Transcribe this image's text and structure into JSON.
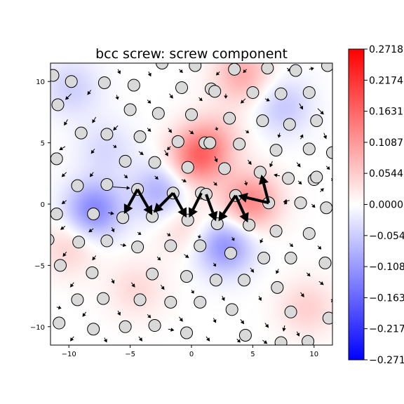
{
  "chart_data": {
    "type": "heatmap",
    "title": "bcc screw: screw component",
    "xlabel": "",
    "ylabel": "",
    "xlim": [
      -11.5,
      11.5
    ],
    "ylim": [
      -11.5,
      11.5
    ],
    "xticks": [
      -10,
      -5,
      0,
      5,
      10
    ],
    "yticks": [
      -10,
      -5,
      0,
      5,
      10
    ],
    "xtick_labels": [
      "−10",
      "−5",
      "0",
      "5",
      "10"
    ],
    "ytick_labels": [
      "−10",
      "−5",
      "0",
      "5",
      "10"
    ],
    "grid": false,
    "colormap": "bwr",
    "colors": {
      "positive": "#ff0000",
      "zero": "#ffffff",
      "negative": "#0000ff"
    },
    "colorbar": {
      "range": [
        -0.2718,
        0.2718
      ],
      "ticks": [
        0.2718,
        0.2174,
        0.1631,
        0.1087,
        0.0544,
        0.0,
        -0.0544,
        -0.1087,
        -0.1631,
        -0.2174,
        -0.2718
      ],
      "tick_labels": [
        "0.2718",
        "0.2174",
        "0.1631",
        "0.1087",
        "0.0544",
        "0.0000",
        "−0.0544",
        "−0.1087",
        "−0.1631",
        "−0.2174",
        "−0.2718"
      ]
    },
    "field_sources": [
      {
        "x": 0.5,
        "y": 3.8,
        "value": 0.15
      },
      {
        "x": 4.8,
        "y": 0.2,
        "value": 0.13
      },
      {
        "x": 2.0,
        "y": 5.5,
        "value": 0.05
      },
      {
        "x": -8.0,
        "y": -0.5,
        "value": -0.13
      },
      {
        "x": -2.5,
        "y": 1.0,
        "value": -0.09
      },
      {
        "x": 2.7,
        "y": -3.4,
        "value": -0.12
      },
      {
        "x": 4.2,
        "y": 10.6,
        "value": 0.09
      },
      {
        "x": -0.5,
        "y": -1.8,
        "value": 0.05
      },
      {
        "x": 7.5,
        "y": 8.0,
        "value": -0.06
      },
      {
        "x": -10.0,
        "y": -3.5,
        "value": 0.05
      },
      {
        "x": -9.8,
        "y": 9.5,
        "value": -0.05
      },
      {
        "x": 9.5,
        "y": -8.5,
        "value": 0.05
      },
      {
        "x": -7.0,
        "y": 4.5,
        "value": -0.04
      },
      {
        "x": -4.5,
        "y": -7.0,
        "value": 0.04
      }
    ],
    "atoms": [
      [
        -11.3,
        10.5
      ],
      [
        -9.8,
        10.0
      ],
      [
        -7.1,
        9.9
      ],
      [
        -4.7,
        9.7
      ],
      [
        -2.4,
        11.5
      ],
      [
        -0.8,
        9.5
      ],
      [
        0.3,
        11.3
      ],
      [
        1.6,
        9.4
      ],
      [
        3.5,
        11.0
      ],
      [
        5.0,
        9.1
      ],
      [
        6.2,
        11.1
      ],
      [
        8.5,
        10.9
      ],
      [
        7.3,
        9.0
      ],
      [
        9.6,
        9.1
      ],
      [
        11.1,
        11.3
      ],
      [
        -10.9,
        8.1
      ],
      [
        -5.0,
        7.7
      ],
      [
        -2.7,
        7.4
      ],
      [
        0.0,
        7.3
      ],
      [
        1.9,
        9.2
      ],
      [
        3.1,
        7.0
      ],
      [
        5.8,
        6.8
      ],
      [
        8.0,
        6.5
      ],
      [
        10.2,
        6.8
      ],
      [
        -9.0,
        5.8
      ],
      [
        -6.9,
        5.7
      ],
      [
        -4.2,
        5.5
      ],
      [
        -1.1,
        5.1
      ],
      [
        1.1,
        5.0
      ],
      [
        1.5,
        5.0
      ],
      [
        3.9,
        4.9
      ],
      [
        6.9,
        4.4
      ],
      [
        9.6,
        4.5
      ],
      [
        11.5,
        4.2
      ],
      [
        -11.0,
        3.7
      ],
      [
        -5.4,
        3.5
      ],
      [
        -3.0,
        3.4
      ],
      [
        -0.3,
        3.0
      ],
      [
        2.7,
        2.9
      ],
      [
        5.6,
        2.6
      ],
      [
        7.9,
        2.1
      ],
      [
        10.0,
        2.0
      ],
      [
        10.2,
        2.2
      ],
      [
        -9.3,
        1.5
      ],
      [
        -6.9,
        1.6
      ],
      [
        -4.4,
        1.2
      ],
      [
        -1.5,
        0.9
      ],
      [
        0.8,
        0.9
      ],
      [
        1.2,
        0.8
      ],
      [
        3.6,
        0.7
      ],
      [
        6.3,
        0.1
      ],
      [
        8.9,
        0.1
      ],
      [
        11.0,
        -0.3
      ],
      [
        -11.0,
        -0.8
      ],
      [
        -8.0,
        -0.8
      ],
      [
        -5.6,
        -1.1
      ],
      [
        -3.2,
        -1.0
      ],
      [
        -0.3,
        -1.3
      ],
      [
        2.1,
        -1.6
      ],
      [
        4.7,
        -1.7
      ],
      [
        6.9,
        -2.2
      ],
      [
        9.6,
        -2.4
      ],
      [
        -11.7,
        -2.9
      ],
      [
        -9.2,
        -3.1
      ],
      [
        -6.9,
        -3.0
      ],
      [
        -4.4,
        -3.5
      ],
      [
        -1.7,
        -3.4
      ],
      [
        0.7,
        -3.4
      ],
      [
        3.2,
        -4.0
      ],
      [
        5.9,
        -4.4
      ],
      [
        8.1,
        -4.4
      ],
      [
        10.9,
        -4.8
      ],
      [
        -10.7,
        -5.0
      ],
      [
        -8.1,
        -5.6
      ],
      [
        -3.2,
        -5.7
      ],
      [
        -0.4,
        -5.9
      ],
      [
        2.0,
        -6.2
      ],
      [
        4.3,
        -6.2
      ],
      [
        7.0,
        -6.8
      ],
      [
        -9.3,
        -7.8
      ],
      [
        -7.2,
        -7.7
      ],
      [
        -4.2,
        -7.8
      ],
      [
        -1.7,
        -8.0
      ],
      [
        0.7,
        -8.0
      ],
      [
        3.3,
        -8.6
      ],
      [
        8.1,
        -8.8
      ],
      [
        11.2,
        -9.3
      ],
      [
        -10.8,
        -9.7
      ],
      [
        -8.0,
        -10.2
      ],
      [
        -5.4,
        -10.0
      ],
      [
        -3.0,
        -9.9
      ],
      [
        -0.4,
        -10.5
      ],
      [
        4.4,
        -10.7
      ],
      [
        7.3,
        -11.3
      ],
      [
        9.5,
        -11.2
      ]
    ],
    "core_arrows": [
      [
        -4.4,
        1.2,
        -5.5,
        -0.8
      ],
      [
        -4.4,
        1.2,
        -3.2,
        -0.9
      ],
      [
        -1.5,
        0.9,
        -3.1,
        -0.7
      ],
      [
        -1.5,
        0.9,
        -0.4,
        -1.1
      ],
      [
        0.8,
        0.9,
        -0.2,
        -1.1
      ],
      [
        1.2,
        0.8,
        2.0,
        -1.4
      ],
      [
        3.6,
        0.7,
        2.2,
        -1.4
      ],
      [
        3.6,
        0.7,
        4.6,
        -1.5
      ],
      [
        6.3,
        0.1,
        3.8,
        0.7
      ],
      [
        6.3,
        0.1,
        5.7,
        2.4
      ]
    ],
    "small_arrows": [
      [
        -6.0,
        11.0,
        -5.8,
        10.6
      ],
      [
        -3.5,
        10.8,
        -3.3,
        10.4
      ],
      [
        -1.0,
        11.0,
        -0.7,
        10.7
      ],
      [
        2.3,
        10.8,
        2.0,
        10.5
      ],
      [
        4.5,
        11.0,
        4.2,
        10.7
      ],
      [
        7.8,
        11.1,
        8.1,
        10.8
      ],
      [
        9.6,
        11.0,
        10.0,
        11.1
      ],
      [
        -9.8,
        9.0,
        -10.3,
        8.5
      ],
      [
        -8.2,
        9.3,
        -8.5,
        8.9
      ],
      [
        -6.1,
        8.9,
        -6.0,
        8.5
      ],
      [
        -3.6,
        8.5,
        -3.3,
        8.2
      ],
      [
        -1.8,
        9.0,
        -1.5,
        8.6
      ],
      [
        0.6,
        8.7,
        0.9,
        8.4
      ],
      [
        2.8,
        9.0,
        2.8,
        8.6
      ],
      [
        4.4,
        8.6,
        4.0,
        8.2
      ],
      [
        6.0,
        8.6,
        6.4,
        8.4
      ],
      [
        8.8,
        8.2,
        9.1,
        7.7
      ],
      [
        10.3,
        7.8,
        10.8,
        7.3
      ],
      [
        -10.1,
        6.9,
        -10.4,
        6.4
      ],
      [
        -7.8,
        7.1,
        -8.1,
        6.6
      ],
      [
        -6.0,
        6.4,
        -6.4,
        6.0
      ],
      [
        -3.6,
        6.2,
        -3.3,
        5.9
      ],
      [
        -1.9,
        6.2,
        -1.6,
        5.8
      ],
      [
        -0.2,
        6.0,
        0.2,
        5.7
      ],
      [
        2.0,
        6.3,
        2.1,
        6.0
      ],
      [
        4.4,
        6.0,
        4.7,
        5.8
      ],
      [
        7.2,
        5.8,
        7.1,
        5.4
      ],
      [
        8.9,
        5.3,
        9.1,
        5.7
      ],
      [
        10.8,
        5.8,
        11.0,
        5.3
      ],
      [
        -10.3,
        4.7,
        -10.8,
        4.4
      ],
      [
        -7.9,
        4.5,
        -8.2,
        4.1
      ],
      [
        -6.4,
        4.8,
        -6.1,
        4.6
      ],
      [
        -4.3,
        4.3,
        -3.9,
        4.0
      ],
      [
        -2.2,
        4.4,
        -1.9,
        3.9
      ],
      [
        -1.7,
        4.7,
        -2.0,
        4.4
      ],
      [
        1.9,
        3.9,
        2.1,
        3.4
      ],
      [
        4.6,
        3.6,
        4.9,
        3.2
      ],
      [
        6.6,
        3.5,
        6.4,
        3.0
      ],
      [
        8.6,
        3.4,
        8.9,
        3.0
      ],
      [
        11.0,
        3.1,
        11.3,
        2.8
      ],
      [
        -10.2,
        2.6,
        -10.6,
        2.2
      ],
      [
        -8.0,
        2.6,
        -8.3,
        2.2
      ],
      [
        -5.5,
        2.4,
        -5.2,
        2.1
      ],
      [
        -3.0,
        2.3,
        -2.7,
        2.0
      ],
      [
        -0.8,
        2.0,
        -0.4,
        1.8
      ],
      [
        1.8,
        1.8,
        2.1,
        1.5
      ],
      [
        4.4,
        1.9,
        4.5,
        1.5
      ],
      [
        7.2,
        2.3,
        6.7,
        2.4
      ],
      [
        8.7,
        1.9,
        9.0,
        1.6
      ],
      [
        10.5,
        1.0,
        10.8,
        1.3
      ],
      [
        11.4,
        2.1,
        11.6,
        1.9
      ],
      [
        -10.2,
        0.3,
        -10.6,
        0.0
      ],
      [
        -6.4,
        1.4,
        -5.0,
        1.3
      ],
      [
        -8.4,
        -0.6,
        -7.5,
        -0.8
      ],
      [
        -6.8,
        -0.7,
        -6.3,
        -0.8
      ],
      [
        8.0,
        0.3,
        7.5,
        0.2
      ],
      [
        9.8,
        0.0,
        10.1,
        -0.3
      ],
      [
        7.5,
        0.2,
        7.8,
        0.0
      ],
      [
        -10.3,
        -1.8,
        -10.7,
        -2.1
      ],
      [
        -8.0,
        -2.0,
        -8.4,
        -2.3
      ],
      [
        -6.5,
        -1.9,
        -6.3,
        -2.3
      ],
      [
        -4.4,
        -2.3,
        -4.1,
        -2.5
      ],
      [
        -2.0,
        -2.4,
        -1.7,
        -2.6
      ],
      [
        0.7,
        -2.5,
        0.6,
        -2.8
      ],
      [
        3.3,
        -2.7,
        3.5,
        -3.0
      ],
      [
        5.8,
        -2.8,
        5.6,
        -3.2
      ],
      [
        8.0,
        -3.2,
        8.3,
        -3.5
      ],
      [
        10.3,
        -3.4,
        10.6,
        -3.7
      ],
      [
        -10.2,
        -3.9,
        -10.5,
        -4.3
      ],
      [
        -7.8,
        -4.2,
        -8.1,
        -4.6
      ],
      [
        -5.8,
        -3.3,
        -5.3,
        -3.4
      ],
      [
        -2.8,
        -4.3,
        -2.5,
        -4.6
      ],
      [
        -0.6,
        -4.1,
        -0.2,
        -4.4
      ],
      [
        1.8,
        -4.8,
        2.0,
        -5.1
      ],
      [
        4.8,
        -5.2,
        5.1,
        -5.6
      ],
      [
        7.1,
        -5.3,
        6.9,
        -5.7
      ],
      [
        9.4,
        -5.6,
        9.7,
        -5.9
      ],
      [
        -9.6,
        -6.4,
        -9.9,
        -6.8
      ],
      [
        -6.5,
        -6.1,
        -6.3,
        -6.5
      ],
      [
        -4.9,
        -6.4,
        -4.6,
        -6.8
      ],
      [
        -2.5,
        -6.6,
        -2.2,
        -7.0
      ],
      [
        0.0,
        -7.0,
        0.2,
        -7.3
      ],
      [
        2.5,
        -7.5,
        2.7,
        -7.9
      ],
      [
        5.5,
        -7.5,
        5.7,
        -7.9
      ],
      [
        8.9,
        -7.2,
        9.2,
        -7.6
      ],
      [
        10.4,
        -6.3,
        10.8,
        -6.6
      ],
      [
        -11.0,
        -8.4,
        -10.6,
        -8.5
      ],
      [
        -8.6,
        -8.8,
        -8.9,
        -9.2
      ],
      [
        -6.0,
        -8.7,
        -5.8,
        -9.1
      ],
      [
        -3.6,
        -9.0,
        -3.3,
        -9.3
      ],
      [
        -1.0,
        -9.2,
        -0.7,
        -9.6
      ],
      [
        1.8,
        -9.3,
        2.0,
        -9.7
      ],
      [
        4.0,
        -9.4,
        4.3,
        -9.8
      ],
      [
        6.0,
        -9.7,
        6.3,
        -10.1
      ],
      [
        7.6,
        -9.9,
        7.5,
        -10.4
      ],
      [
        -9.6,
        -10.8,
        -9.9,
        -11.2
      ],
      [
        -7.1,
        -10.9,
        -6.9,
        -11.3
      ],
      [
        -4.3,
        -10.8,
        -4.0,
        -11.2
      ],
      [
        -1.9,
        -10.2,
        -1.4,
        -10.3
      ],
      [
        1.2,
        -10.8,
        1.5,
        -11.2
      ],
      [
        3.7,
        -11.0,
        4.0,
        -11.3
      ],
      [
        5.8,
        -11.1,
        6.2,
        -11.4
      ],
      [
        8.6,
        -10.4,
        8.8,
        -10.8
      ],
      [
        11.4,
        -8.0,
        11.6,
        -7.7
      ]
    ]
  }
}
